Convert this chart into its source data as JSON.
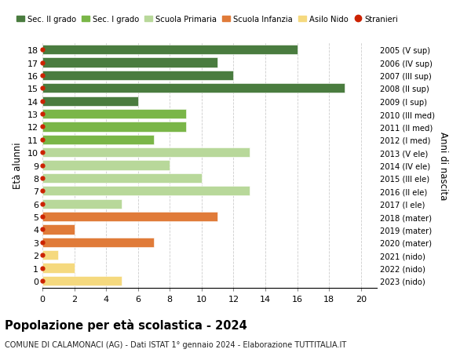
{
  "ages": [
    18,
    17,
    16,
    15,
    14,
    13,
    12,
    11,
    10,
    9,
    8,
    7,
    6,
    5,
    4,
    3,
    2,
    1,
    0
  ],
  "right_labels": [
    "2005 (V sup)",
    "2006 (IV sup)",
    "2007 (III sup)",
    "2008 (II sup)",
    "2009 (I sup)",
    "2010 (III med)",
    "2011 (II med)",
    "2012 (I med)",
    "2013 (V ele)",
    "2014 (IV ele)",
    "2015 (III ele)",
    "2016 (II ele)",
    "2017 (I ele)",
    "2018 (mater)",
    "2019 (mater)",
    "2020 (mater)",
    "2021 (nido)",
    "2022 (nido)",
    "2023 (nido)"
  ],
  "bar_values": [
    16,
    11,
    12,
    19,
    6,
    9,
    9,
    7,
    13,
    8,
    10,
    13,
    5,
    11,
    2,
    7,
    1,
    2,
    5
  ],
  "bar_colors": [
    "#4a7c3f",
    "#4a7c3f",
    "#4a7c3f",
    "#4a7c3f",
    "#4a7c3f",
    "#7ab648",
    "#7ab648",
    "#7ab648",
    "#b8d89a",
    "#b8d89a",
    "#b8d89a",
    "#b8d89a",
    "#b8d89a",
    "#e07b39",
    "#e07b39",
    "#e07b39",
    "#f5d97e",
    "#f5d97e",
    "#f5d97e"
  ],
  "stranieri_ages": [
    18,
    17,
    16,
    15,
    14,
    13,
    12,
    11,
    10,
    9,
    8,
    7,
    6,
    5,
    4,
    3,
    2,
    1,
    0
  ],
  "legend_labels": [
    "Sec. II grado",
    "Sec. I grado",
    "Scuola Primaria",
    "Scuola Infanzia",
    "Asilo Nido",
    "Stranieri"
  ],
  "legend_colors": [
    "#4a7c3f",
    "#7ab648",
    "#b8d89a",
    "#e07b39",
    "#f5d97e",
    "#cc2200"
  ],
  "title": "Popolazione per età scolastica - 2024",
  "subtitle": "COMUNE DI CALAMONACI (AG) - Dati ISTAT 1° gennaio 2024 - Elaborazione TUTTITALIA.IT",
  "ylabel_left": "Età alunni",
  "ylabel_right": "Anni di nascita",
  "xlim": [
    0,
    21
  ],
  "xticks": [
    0,
    2,
    4,
    6,
    8,
    10,
    12,
    14,
    16,
    18,
    20
  ],
  "bar_height": 0.75,
  "dot_color": "#cc2200",
  "dot_size": 18,
  "grid_color": "#cccccc",
  "background_color": "#ffffff",
  "bar_edge_color": "#ffffff"
}
